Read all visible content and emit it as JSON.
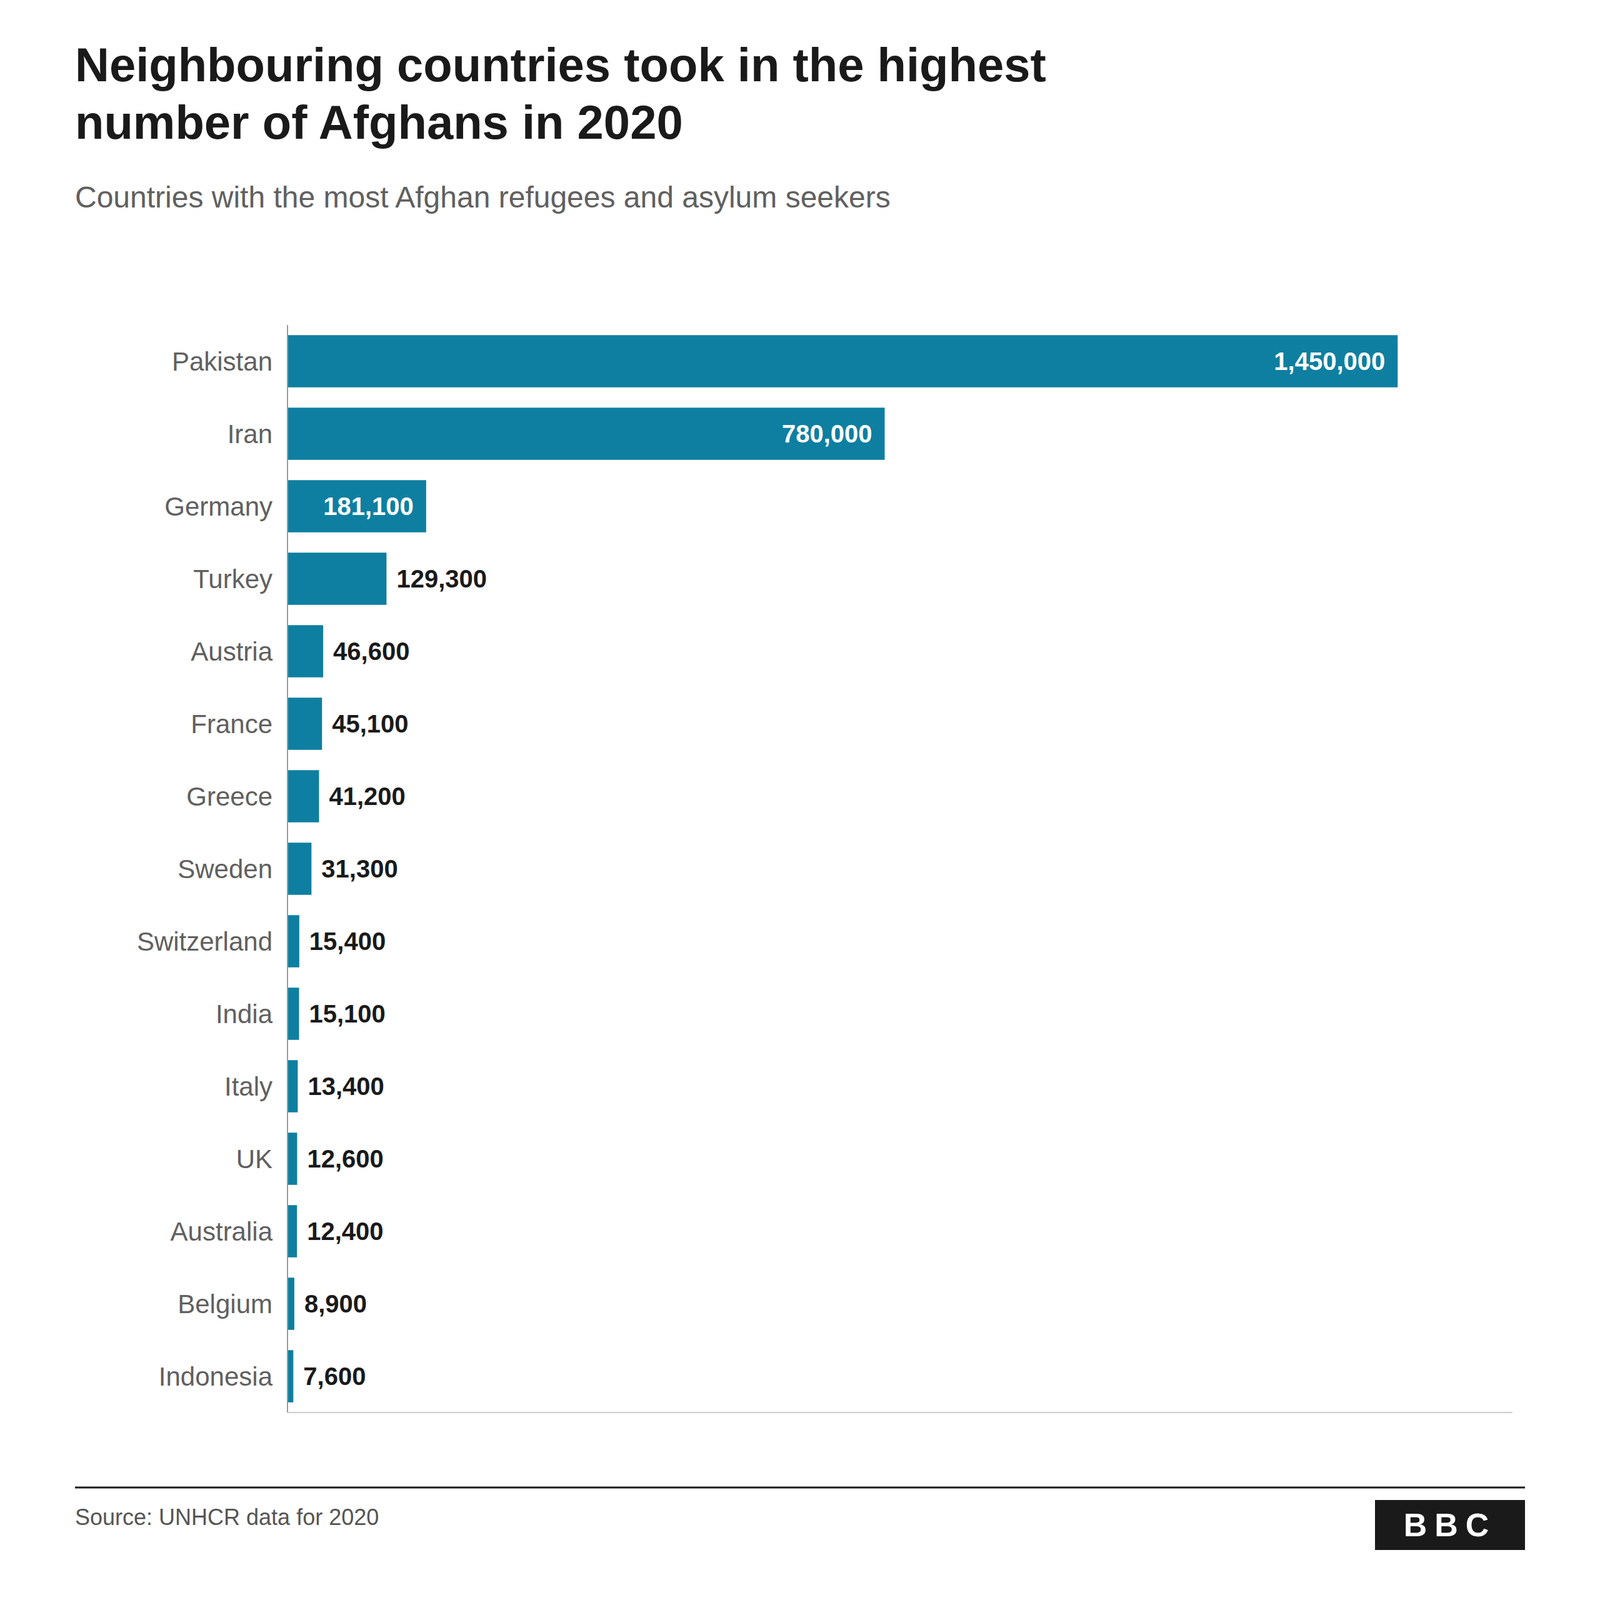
{
  "chart_data": {
    "type": "bar",
    "orientation": "horizontal",
    "title": "Neighbouring countries took in the highest\nnumber of Afghans in 2020",
    "subtitle": "Countries with the most Afghan refugees and asylum seekers",
    "source": "Source: UNHCR data for 2020",
    "annotations": [
      "BBC"
    ],
    "categories": [
      "Pakistan",
      "Iran",
      "Germany",
      "Turkey",
      "Austria",
      "France",
      "Greece",
      "Sweden",
      "Switzerland",
      "India",
      "Italy",
      "UK",
      "Australia",
      "Belgium",
      "Indonesia"
    ],
    "values": [
      1450000,
      780000,
      181100,
      129300,
      46600,
      45100,
      41200,
      31300,
      15400,
      15100,
      13400,
      12600,
      12400,
      8900,
      7600
    ],
    "value_labels": [
      "1,450,000",
      "780,000",
      "181,100",
      "129,300",
      "46,600",
      "45,100",
      "41,200",
      "31,300",
      "15,400",
      "15,100",
      "13,400",
      "12,600",
      "12,400",
      "8,900",
      "7,600"
    ],
    "color": "#0e7fa0",
    "xlim": [
      0,
      1600000
    ],
    "xticks": [],
    "grid": false,
    "data_labels": true,
    "tick_labels": "y"
  }
}
